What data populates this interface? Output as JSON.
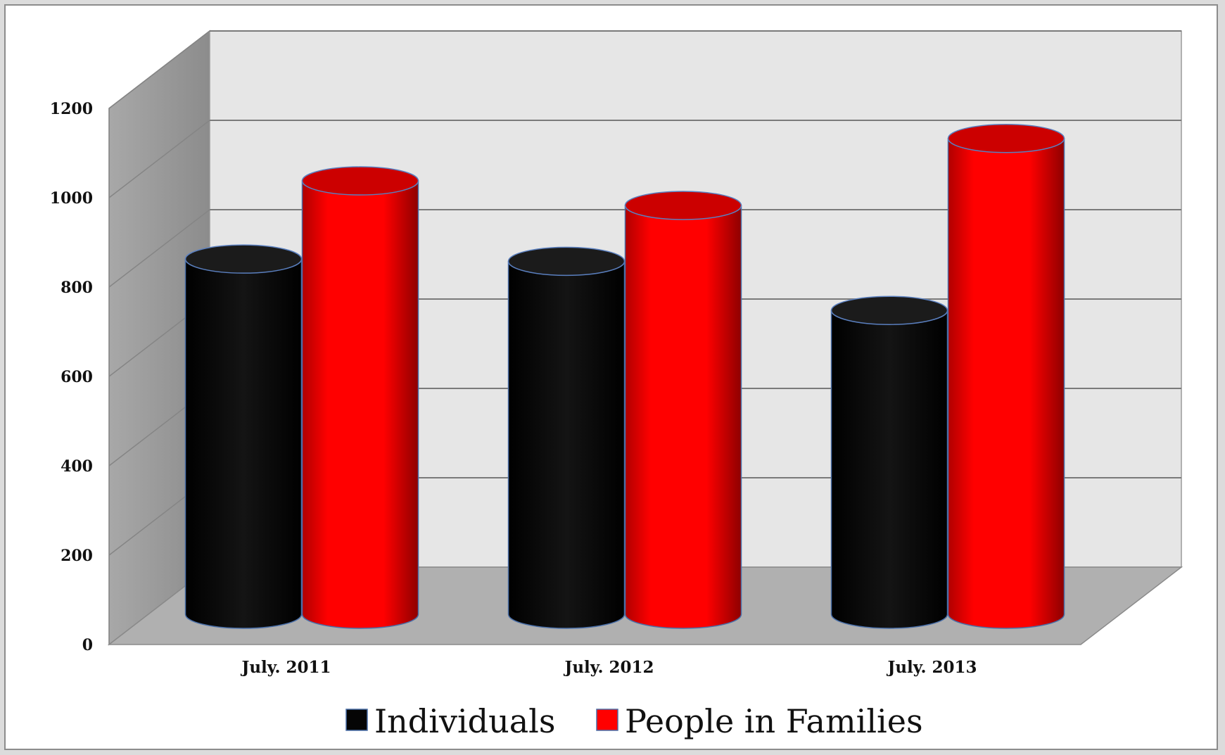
{
  "chart_data": {
    "type": "bar",
    "style": "3d-cylinder",
    "title": "",
    "xlabel": "",
    "ylabel": "",
    "categories": [
      "July. 2011",
      "July. 2012",
      "July. 2013"
    ],
    "series": [
      {
        "name": "Individuals",
        "color": "#050505",
        "values": [
          795,
          790,
          680
        ]
      },
      {
        "name": "People in Families",
        "color": "#ff0000",
        "values": [
          970,
          915,
          1065
        ]
      }
    ],
    "ylim": [
      0,
      1200
    ],
    "yticks": [
      "0",
      "200",
      "400",
      "600",
      "800",
      "1000",
      "1200"
    ],
    "grid": true,
    "legend_position": "bottom",
    "colors": {
      "back_wall": "#e6e6e6",
      "side_wall": "#9a9a9a",
      "floor": "#b0b0b0",
      "gridline": "#7a7a7a"
    }
  }
}
